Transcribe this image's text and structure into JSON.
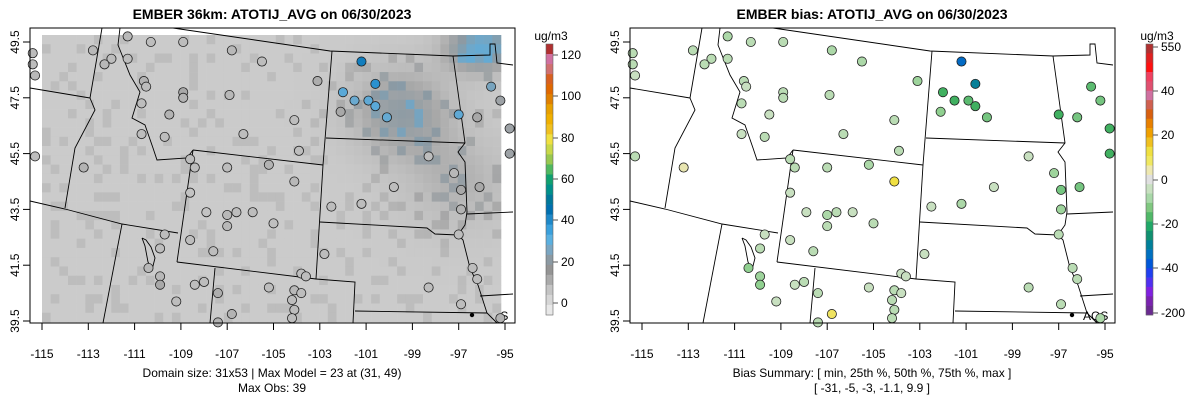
{
  "panels": [
    {
      "title": "EMBER 36km: ATOTIJ_AVG on 06/30/2023",
      "colorbar_unit": "ug/m3",
      "colorbar_ticks": [
        "120",
        "100",
        "80",
        "60",
        "40",
        "20",
        "0"
      ],
      "caption_line1": "Domain size: 31x53 | Max Model = 23 at (31, 49)",
      "caption_line2": "Max Obs: 39",
      "legend_label": "AQS",
      "kind": "obs"
    },
    {
      "title": "EMBER bias: ATOTIJ_AVG on 06/30/2023",
      "colorbar_unit": "ug/m3",
      "colorbar_ticks": [
        "550",
        "40",
        "20",
        "0",
        "-20",
        "-40",
        "-200"
      ],
      "caption_line1": "Bias Summary: [ min, 25th %, 50th %, 75th %, max ]",
      "caption_line2": "[ -31,   -5,   -3,   -1.1,   9.9 ]",
      "legend_label": "AQS",
      "kind": "bias"
    }
  ],
  "axes": {
    "lon_ticks": [
      "-115",
      "-113",
      "-111",
      "-109",
      "-107",
      "-105",
      "-103",
      "-101",
      "-99",
      "-97",
      "-95"
    ],
    "lat_ticks": [
      "49.5",
      "47.5",
      "45.5",
      "43.5",
      "41.5",
      "39.5"
    ]
  },
  "chart_data": {
    "type": "scatter",
    "domain_size": [
      31,
      53
    ],
    "max_model": 23,
    "max_obs": 39,
    "bias_summary": {
      "min": -31,
      "p25": -5,
      "p50": -3,
      "p75": -1.1,
      "max": 9.9
    },
    "xlim": [
      -115.5,
      -94.5
    ],
    "ylim": [
      39.4,
      49.8
    ],
    "stations_fields": [
      "lon",
      "lat",
      "obs",
      "bias"
    ],
    "stations": [
      [
        -115.4,
        49.1,
        8,
        -3
      ],
      [
        -115.4,
        48.7,
        8,
        -3
      ],
      [
        -115.3,
        48.3,
        9,
        -2
      ],
      [
        -111.3,
        49.7,
        9,
        -4
      ],
      [
        -110.3,
        49.5,
        8,
        -3
      ],
      [
        -108.9,
        49.5,
        8,
        -3
      ],
      [
        -112.8,
        49.2,
        9,
        -3
      ],
      [
        -112.0,
        48.9,
        8,
        -3
      ],
      [
        -112.3,
        48.7,
        9,
        -3
      ],
      [
        -111.3,
        48.9,
        8,
        -3
      ],
      [
        -106.8,
        49.2,
        9,
        -4
      ],
      [
        -105.5,
        48.8,
        8,
        -4
      ],
      [
        -103.1,
        48.1,
        11,
        -5
      ],
      [
        -110.6,
        48.1,
        10,
        -3
      ],
      [
        -110.5,
        47.9,
        8,
        -2
      ],
      [
        -108.9,
        47.7,
        12,
        -3
      ],
      [
        -108.9,
        47.5,
        10,
        -3
      ],
      [
        -106.9,
        47.6,
        9,
        -3
      ],
      [
        -110.7,
        47.3,
        8,
        -3
      ],
      [
        -109.5,
        46.9,
        10,
        -2
      ],
      [
        -110.7,
        46.2,
        8,
        -2
      ],
      [
        -109.7,
        46.1,
        8,
        -3
      ],
      [
        -106.3,
        46.2,
        8,
        -3
      ],
      [
        -104.1,
        46.7,
        8,
        -3
      ],
      [
        -103.9,
        45.6,
        8,
        -3
      ],
      [
        -115.3,
        45.4,
        8,
        -3
      ],
      [
        -113.2,
        45.0,
        10,
        3
      ],
      [
        -108.6,
        45.3,
        8,
        -3
      ],
      [
        -108.4,
        45.0,
        8,
        -3
      ],
      [
        -107.0,
        45.0,
        8,
        -3
      ],
      [
        -105.2,
        45.1,
        10,
        -4
      ],
      [
        -104.1,
        44.5,
        9,
        9.9
      ],
      [
        -108.6,
        44.1,
        6,
        -2
      ],
      [
        -107.9,
        43.4,
        6,
        -2
      ],
      [
        -107.0,
        43.3,
        9,
        -4
      ],
      [
        -106.6,
        43.4,
        8,
        -3
      ],
      [
        -107.0,
        42.9,
        9,
        -3
      ],
      [
        -105.9,
        43.4,
        8,
        -2
      ],
      [
        -105.0,
        43.0,
        7,
        -3
      ],
      [
        -108.6,
        42.4,
        8,
        -2
      ],
      [
        -107.6,
        42.0,
        8,
        -3
      ],
      [
        -109.7,
        42.6,
        8,
        -2
      ],
      [
        -109.9,
        42.1,
        8,
        -3
      ],
      [
        -110.4,
        41.4,
        9,
        -6
      ],
      [
        -109.9,
        41.1,
        9,
        -5
      ],
      [
        -109.9,
        40.8,
        12,
        -6
      ],
      [
        -108.4,
        40.8,
        8,
        -2
      ],
      [
        -108.0,
        40.9,
        8,
        -3
      ],
      [
        -109.2,
        40.2,
        8,
        -2
      ],
      [
        -107.4,
        40.5,
        11,
        -3
      ],
      [
        -106.8,
        39.75,
        10,
        8
      ],
      [
        -107.4,
        39.45,
        10,
        -3
      ],
      [
        -105.2,
        40.7,
        8,
        -2
      ],
      [
        -104.1,
        40.6,
        9,
        -3
      ],
      [
        -103.8,
        40.5,
        8,
        -2
      ],
      [
        -104.2,
        40.25,
        8,
        -3
      ],
      [
        -104.1,
        39.9,
        8,
        -3
      ],
      [
        -104.2,
        39.6,
        8,
        -3
      ],
      [
        -103.8,
        41.2,
        8,
        -2
      ],
      [
        -103.6,
        41.1,
        8,
        -2
      ],
      [
        -102.8,
        41.9,
        8,
        -2
      ],
      [
        -102.5,
        43.6,
        8,
        -2
      ],
      [
        -101.2,
        43.7,
        8,
        -4
      ],
      [
        -99.8,
        44.3,
        8,
        -2
      ],
      [
        -98.3,
        45.4,
        8,
        -2
      ],
      [
        -97.2,
        44.8,
        9,
        -5
      ],
      [
        -96.9,
        44.2,
        12,
        -8
      ],
      [
        -96.1,
        44.3,
        12,
        -8
      ],
      [
        -96.9,
        43.5,
        10,
        -5
      ],
      [
        -97.0,
        42.6,
        8,
        -3
      ],
      [
        -96.4,
        41.4,
        8,
        -3
      ],
      [
        -96.2,
        41.0,
        8,
        -3
      ],
      [
        -98.3,
        40.7,
        8,
        -3
      ],
      [
        -96.9,
        40.1,
        8,
        -3
      ],
      [
        -95.2,
        39.6,
        10,
        -4
      ],
      [
        -94.8,
        46.4,
        14,
        -12
      ],
      [
        -94.8,
        45.5,
        14,
        -12
      ],
      [
        -95.2,
        47.4,
        14,
        -8
      ],
      [
        -95.6,
        47.9,
        20,
        -10
      ],
      [
        -96.2,
        46.8,
        12,
        -8
      ],
      [
        -97.0,
        46.9,
        24,
        -12
      ],
      [
        -102.1,
        47.0,
        12,
        -6
      ],
      [
        -102.0,
        47.7,
        25,
        -12
      ],
      [
        -101.5,
        47.4,
        22,
        -12
      ],
      [
        -100.9,
        47.4,
        24,
        -10
      ],
      [
        -100.6,
        47.2,
        25,
        -12
      ],
      [
        -100.1,
        46.8,
        23,
        -8
      ],
      [
        -101.2,
        48.8,
        39,
        -31
      ],
      [
        -100.6,
        48.0,
        33,
        -25
      ]
    ]
  },
  "colors": {
    "frame": "#000000",
    "background_gray": "#d3d3d3",
    "obs_scale": [
      "#e8e8e8",
      "#d6d6d6",
      "#c4c4c4",
      "#aaaaaa",
      "#949494",
      "#8c9aa3",
      "#7aa6c2",
      "#5ab0e0",
      "#3aa0dc",
      "#1e88c8",
      "#0070b0",
      "#00789a",
      "#00908a",
      "#10a070",
      "#50b860",
      "#98c850",
      "#c8d848",
      "#f0e040",
      "#f0c020",
      "#f0b000",
      "#e8a000",
      "#e08000",
      "#e06800",
      "#d86020",
      "#d07070",
      "#d070a0",
      "#b03030"
    ],
    "bias_scale": [
      "#6a2a90",
      "#7a22b0",
      "#8020e0",
      "#5030f0",
      "#2040f0",
      "#0058d8",
      "#0070c0",
      "#00809a",
      "#109070",
      "#20a868",
      "#50b868",
      "#80c880",
      "#a8d8a8",
      "#c8e0c0",
      "#e0e0e0",
      "#eee8b0",
      "#f0e860",
      "#f0e040",
      "#f0c020",
      "#f0a000",
      "#e88000",
      "#d86010",
      "#d06050",
      "#d070a0",
      "#e05070",
      "#f04060",
      "#ff1010",
      "#e02020",
      "#b03030"
    ]
  }
}
